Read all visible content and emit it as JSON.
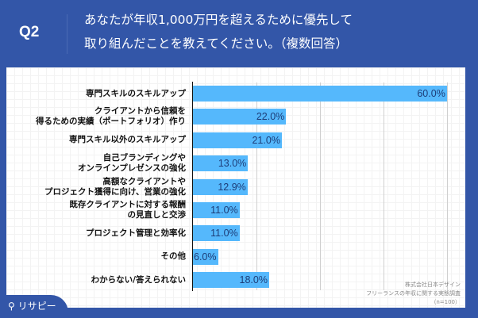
{
  "header": {
    "question_no": "Q2",
    "title_line1": "あなたが年収1,000万円を超えるために優先して",
    "title_line2": "取り組んだことを教えてください。（複数回答）"
  },
  "chart_data": {
    "type": "bar",
    "orientation": "horizontal",
    "categories": [
      [
        "専門スキルのスキルアップ"
      ],
      [
        "クライアントから信頼を",
        "得るための実績（ポートフォリオ）作り"
      ],
      [
        "専門スキル以外のスキルアップ"
      ],
      [
        "自己ブランディングや",
        "オンラインプレゼンスの強化"
      ],
      [
        "高額なクライアントや",
        "プロジェクト獲得に向け、営業の強化"
      ],
      [
        "既存クライアントに対する報酬",
        "の見直しと交渉"
      ],
      [
        "プロジェクト管理と効率化"
      ],
      [
        "その他"
      ],
      [
        "わからない/答えられない"
      ]
    ],
    "values": [
      60.0,
      22.0,
      21.0,
      13.0,
      12.9,
      11.0,
      11.0,
      6.0,
      18.0
    ],
    "value_labels": [
      "60.0%",
      "22.0%",
      "21.0%",
      "13.0%",
      "12.9%",
      "11.0%",
      "11.0%",
      "6.0%",
      "18.0%"
    ],
    "xlim": [
      0,
      60
    ],
    "gridlines": [
      15,
      30,
      45,
      60
    ],
    "bar_color": "#55b8fc"
  },
  "source": {
    "line1": "株式会社日本デザイン",
    "line2": "フリーランスの年収に関する実態調査",
    "line3": "（n=100）"
  },
  "brand": {
    "logo_text": "リサピー"
  }
}
